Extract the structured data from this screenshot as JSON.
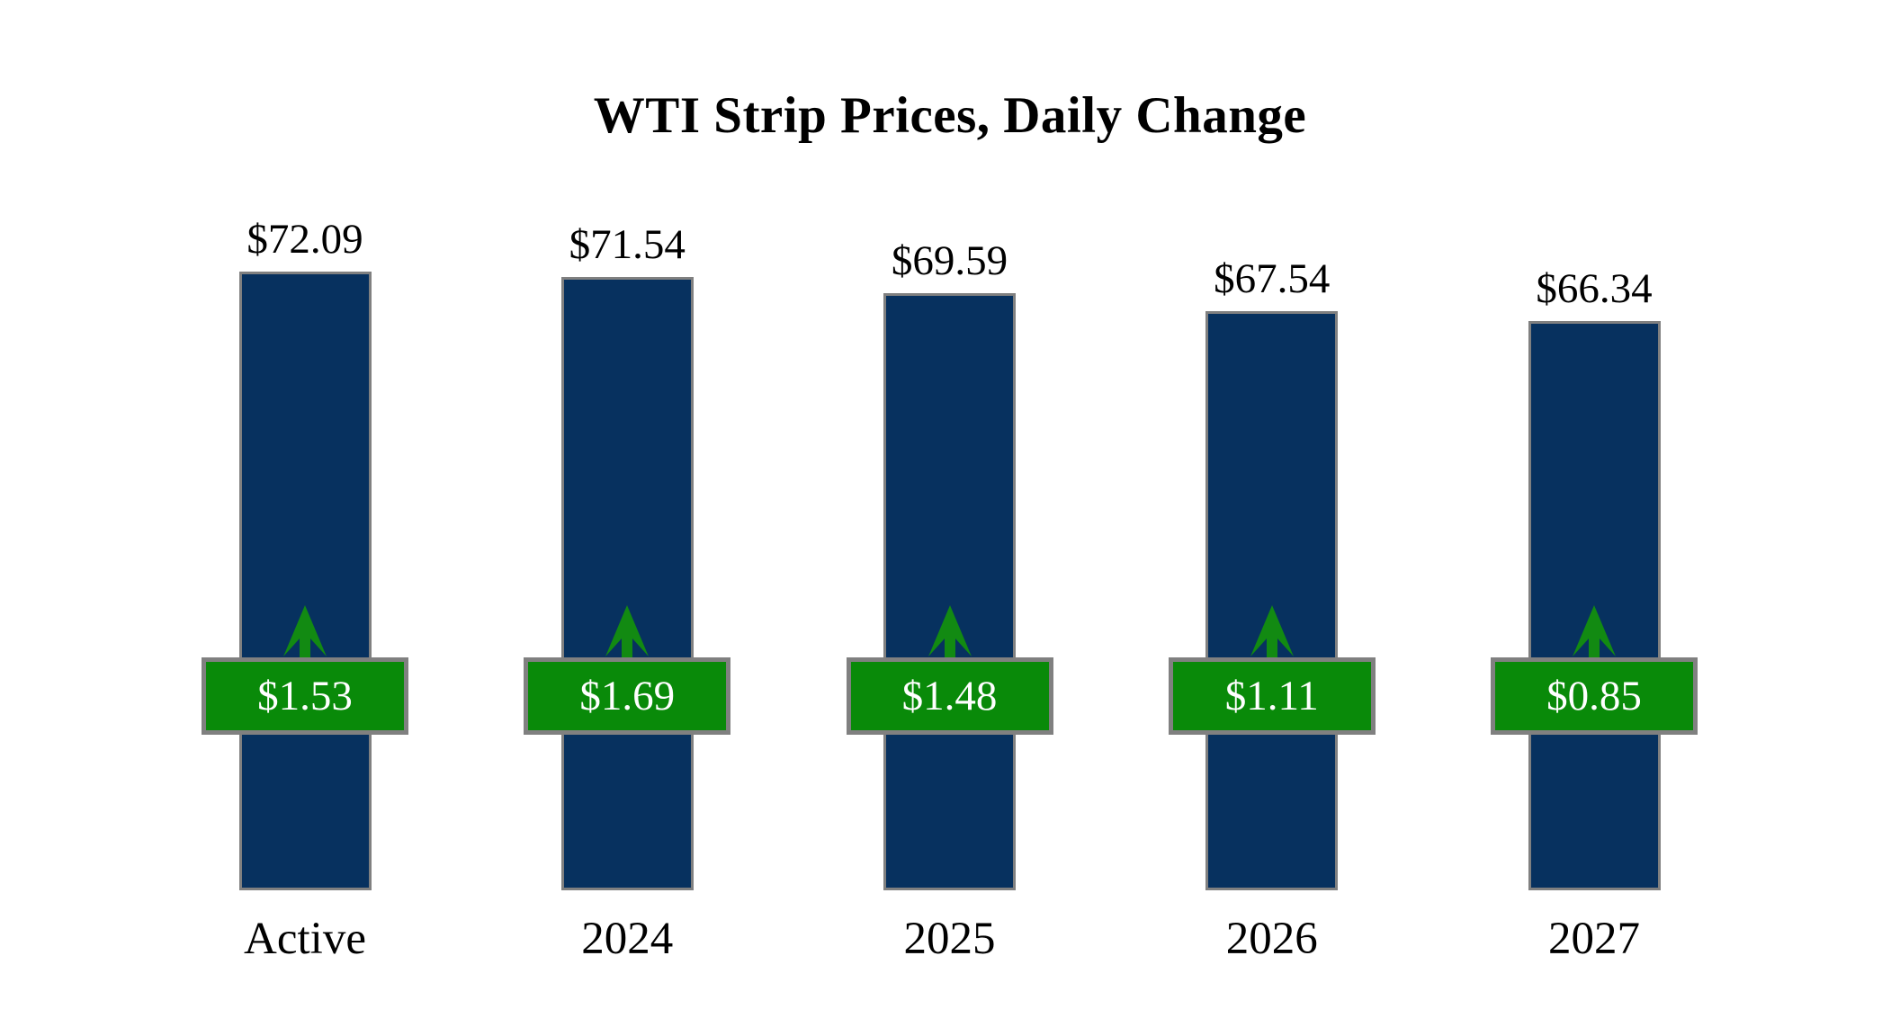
{
  "title": "WTI Strip Prices, Daily Change",
  "colors": {
    "bar_fill": "#07315f",
    "bar_border": "#808080",
    "badge_fill": "#098a09",
    "badge_border": "#808080",
    "badge_text": "#ffffff",
    "arrow": "#128a12",
    "label_text": "#000000",
    "background": "#ffffff"
  },
  "chart_data": {
    "type": "bar",
    "title": "WTI Strip Prices, Daily Change",
    "categories": [
      "Active",
      "2024",
      "2025",
      "2026",
      "2027"
    ],
    "series": [
      {
        "name": "strip_price",
        "values": [
          72.09,
          71.54,
          69.59,
          67.54,
          66.34
        ],
        "labels": [
          "$72.09",
          "$71.54",
          "$69.59",
          "$67.54",
          "$66.34"
        ]
      },
      {
        "name": "daily_change",
        "values": [
          1.53,
          1.69,
          1.48,
          1.11,
          0.85
        ],
        "labels": [
          "$1.53",
          "$1.69",
          "$1.48",
          "$1.11",
          "$0.85"
        ],
        "direction": "up"
      }
    ],
    "xlabel": "",
    "ylabel": "",
    "ylim": [
      0,
      75
    ],
    "grid": false,
    "legend": "none",
    "baseline": 0
  }
}
